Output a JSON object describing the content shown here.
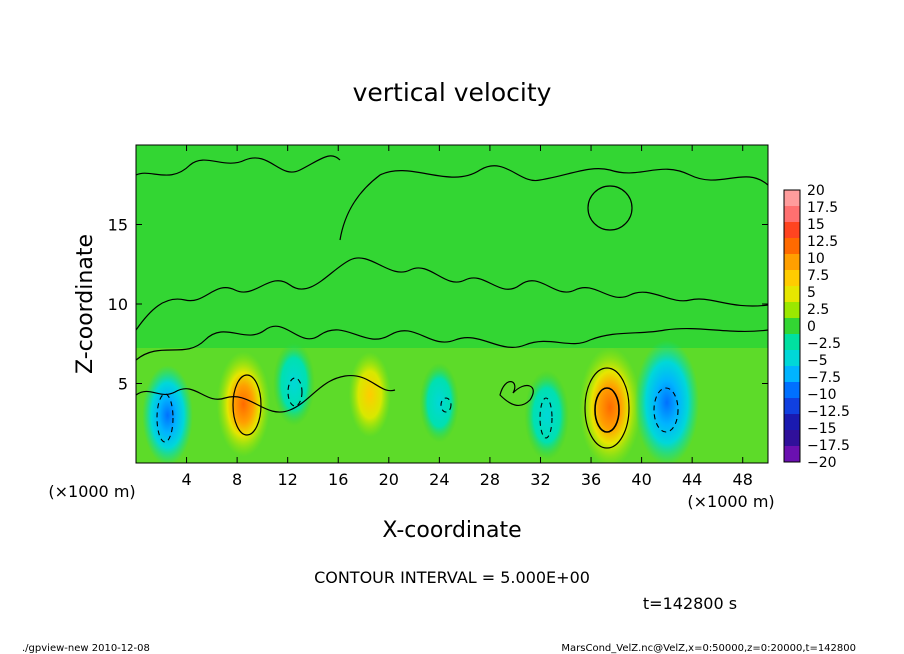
{
  "chart_data": {
    "type": "heatmap",
    "title": "vertical velocity",
    "xlabel": "X-coordinate",
    "ylabel": "Z-coordinate",
    "x_unit_label": "(×1000 m)",
    "z_unit_label": "(×1000 m)",
    "xlim": [
      0,
      50
    ],
    "ylim": [
      0,
      20
    ],
    "x_ticks": [
      4,
      8,
      12,
      16,
      20,
      24,
      28,
      32,
      36,
      40,
      44,
      48
    ],
    "y_ticks": [
      5,
      10,
      15
    ],
    "colorbar": {
      "labels": [
        "20",
        "17.5",
        "15",
        "12.5",
        "10",
        "7.5",
        "5",
        "2.5",
        "0",
        "−2.5",
        "−5",
        "−7.5",
        "−10",
        "−12.5",
        "−15",
        "−17.5",
        "−20"
      ],
      "values": [
        20,
        17.5,
        15,
        12.5,
        10,
        7.5,
        5,
        2.5,
        0,
        -2.5,
        -5,
        -7.5,
        -10,
        -12.5,
        -15,
        -17.5,
        -20
      ],
      "colors": [
        "#ff9c9c",
        "#ff7070",
        "#ff4420",
        "#ff6a00",
        "#ff9f00",
        "#ffcc00",
        "#e6e600",
        "#9be800",
        "#33d633",
        "#00e0a0",
        "#00d8d8",
        "#00b4ff",
        "#0070ff",
        "#1040e0",
        "#1a1ab0",
        "#30109a",
        "#6a10b0"
      ]
    },
    "features": [
      {
        "x": 2.5,
        "z": 3.0,
        "value": -8
      },
      {
        "x": 8.5,
        "z": 3.7,
        "value": 9
      },
      {
        "x": 12.5,
        "z": 5.0,
        "value": -5
      },
      {
        "x": 18.5,
        "z": 4.3,
        "value": 5
      },
      {
        "x": 24.0,
        "z": 3.8,
        "value": -4
      },
      {
        "x": 32.5,
        "z": 3.0,
        "value": -6
      },
      {
        "x": 37.5,
        "z": 3.5,
        "value": 12
      },
      {
        "x": 42.0,
        "z": 3.8,
        "value": -13
      }
    ],
    "contour_interval": "CONTOUR INTERVAL = 5.000E+00",
    "time_label": "t=142800 s"
  },
  "footer": {
    "left": "./gpview-new  2010-12-08",
    "right": "MarsCond_VelZ.nc@VelZ,x=0:50000,z=0:20000,t=142800"
  }
}
